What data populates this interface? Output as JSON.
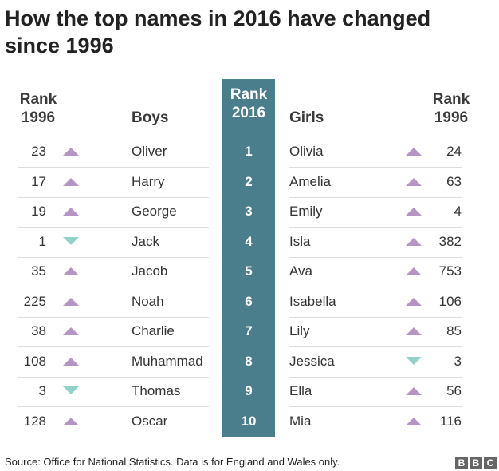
{
  "title": "How the top names in 2016 have changed since 1996",
  "headers": {
    "rank1996_left": "Rank\n1996",
    "boys": "Boys",
    "rank2016": "Rank\n2016",
    "girls": "Girls",
    "rank1996_right": "Rank\n1996"
  },
  "colors": {
    "rank2016_column": "#4a7e8c",
    "arrow_up": "#b595c6",
    "arrow_down": "#8fd3c8"
  },
  "chart_data": {
    "type": "table",
    "columns": [
      "Rank 1996",
      "Boys",
      "Rank 2016",
      "Girls",
      "Rank 1996"
    ],
    "rows": [
      {
        "boy_rank_1996": "23",
        "boy_trend": "up",
        "boy": "Oliver",
        "rank_2016": "1",
        "girl": "Olivia",
        "girl_trend": "up",
        "girl_rank_1996": "24"
      },
      {
        "boy_rank_1996": "17",
        "boy_trend": "up",
        "boy": "Harry",
        "rank_2016": "2",
        "girl": "Amelia",
        "girl_trend": "up",
        "girl_rank_1996": "63"
      },
      {
        "boy_rank_1996": "19",
        "boy_trend": "up",
        "boy": "George",
        "rank_2016": "3",
        "girl": "Emily",
        "girl_trend": "up",
        "girl_rank_1996": "4"
      },
      {
        "boy_rank_1996": "1",
        "boy_trend": "down",
        "boy": "Jack",
        "rank_2016": "4",
        "girl": "Isla",
        "girl_trend": "up",
        "girl_rank_1996": "382"
      },
      {
        "boy_rank_1996": "35",
        "boy_trend": "up",
        "boy": "Jacob",
        "rank_2016": "5",
        "girl": "Ava",
        "girl_trend": "up",
        "girl_rank_1996": "753"
      },
      {
        "boy_rank_1996": "225",
        "boy_trend": "up",
        "boy": "Noah",
        "rank_2016": "6",
        "girl": "Isabella",
        "girl_trend": "up",
        "girl_rank_1996": "106"
      },
      {
        "boy_rank_1996": "38",
        "boy_trend": "up",
        "boy": "Charlie",
        "rank_2016": "7",
        "girl": "Lily",
        "girl_trend": "up",
        "girl_rank_1996": "85"
      },
      {
        "boy_rank_1996": "108",
        "boy_trend": "up",
        "boy": "Muhammad",
        "rank_2016": "8",
        "girl": "Jessica",
        "girl_trend": "down",
        "girl_rank_1996": "3"
      },
      {
        "boy_rank_1996": "3",
        "boy_trend": "down",
        "boy": "Thomas",
        "rank_2016": "9",
        "girl": "Ella",
        "girl_trend": "up",
        "girl_rank_1996": "56"
      },
      {
        "boy_rank_1996": "128",
        "boy_trend": "up",
        "boy": "Oscar",
        "rank_2016": "10",
        "girl": "Mia",
        "girl_trend": "up",
        "girl_rank_1996": "116"
      }
    ]
  },
  "footer": {
    "source": "Source: Office for National Statistics. Data is for England and Wales only.",
    "logo_letters": [
      "B",
      "B",
      "C"
    ]
  }
}
